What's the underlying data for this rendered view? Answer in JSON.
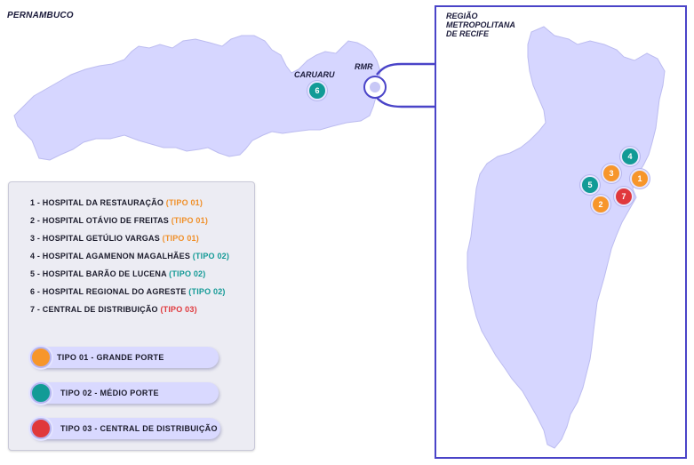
{
  "map": {
    "state_title": "PERNAMBUCO",
    "region_title_lines": [
      "REGIÃO",
      "METROPOLITANA",
      "DE RECIFE"
    ],
    "city_labels": {
      "caruaru": "CARUARU",
      "rmr": "RMR"
    },
    "colors": {
      "land": "#d6d6ff",
      "land_stroke": "#bcbcf0",
      "accent": "#4a44c8",
      "tipo01": "#f7962b",
      "tipo02": "#129b96",
      "tipo03": "#e0383c"
    }
  },
  "markers": [
    {
      "number": "1",
      "tipo": "tipo01"
    },
    {
      "number": "2",
      "tipo": "tipo01"
    },
    {
      "number": "3",
      "tipo": "tipo01"
    },
    {
      "number": "4",
      "tipo": "tipo02"
    },
    {
      "number": "5",
      "tipo": "tipo02"
    },
    {
      "number": "6",
      "tipo": "tipo02"
    },
    {
      "number": "7",
      "tipo": "tipo03"
    }
  ],
  "legend": {
    "items": [
      {
        "name": "1 - HOSPITAL DA RESTAURAÇÃO ",
        "tipo": "(TIPO 01)"
      },
      {
        "name": "2 - HOSPITAL OTÁVIO DE FREITAS ",
        "tipo": "(TIPO 01)"
      },
      {
        "name": "3 - HOSPITAL GETÚLIO VARGAS ",
        "tipo": "(TIPO 01)"
      },
      {
        "name": "4 - HOSPITAL AGAMENON MAGALHÃES ",
        "tipo": "(TIPO 02)"
      },
      {
        "name": "5 - HOSPITAL BARÃO DE LUCENA ",
        "tipo": "(TIPO 02)"
      },
      {
        "name": "6 - HOSPITAL REGIONAL DO AGRESTE ",
        "tipo": "(TIPO 02)"
      },
      {
        "name": "7 - CENTRAL DE DISTRIBUIÇÃO ",
        "tipo": "(TIPO 03)"
      }
    ],
    "categories": [
      {
        "label": "TIPO 01 - GRANDE PORTE"
      },
      {
        "label": "TIPO 02 - MÉDIO PORTE"
      },
      {
        "label": "TIPO 03 - CENTRAL DE DISTRIBUIÇÃO"
      }
    ]
  }
}
